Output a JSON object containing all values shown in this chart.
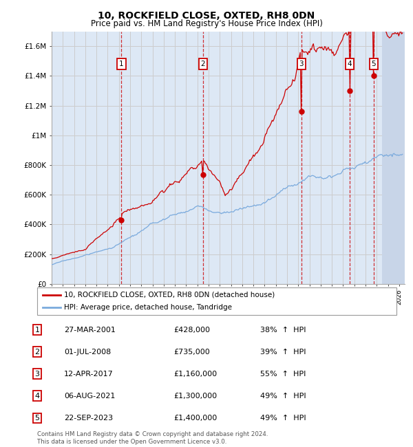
{
  "title": "10, ROCKFIELD CLOSE, OXTED, RH8 0DN",
  "subtitle": "Price paid vs. HM Land Registry's House Price Index (HPI)",
  "ylabel_ticks": [
    "£0",
    "£200K",
    "£400K",
    "£600K",
    "£800K",
    "£1M",
    "£1.2M",
    "£1.4M",
    "£1.6M"
  ],
  "ylabel_values": [
    0,
    200000,
    400000,
    600000,
    800000,
    1000000,
    1200000,
    1400000,
    1600000
  ],
  "ylim": [
    0,
    1700000
  ],
  "xlim_start": 1995.0,
  "xlim_end": 2026.5,
  "legend_line1": "10, ROCKFIELD CLOSE, OXTED, RH8 0DN (detached house)",
  "legend_line2": "HPI: Average price, detached house, Tandridge",
  "sales": [
    {
      "num": 1,
      "date_label": "27-MAR-2001",
      "date_x": 2001.23,
      "price": 428000,
      "pct": "38%",
      "dir": "↑"
    },
    {
      "num": 2,
      "date_label": "01-JUL-2008",
      "date_x": 2008.5,
      "price": 735000,
      "pct": "39%",
      "dir": "↑"
    },
    {
      "num": 3,
      "date_label": "12-APR-2017",
      "date_x": 2017.28,
      "price": 1160000,
      "pct": "55%",
      "dir": "↑"
    },
    {
      "num": 4,
      "date_label": "06-AUG-2021",
      "date_x": 2021.6,
      "price": 1300000,
      "pct": "49%",
      "dir": "↑"
    },
    {
      "num": 5,
      "date_label": "22-SEP-2023",
      "date_x": 2023.73,
      "price": 1400000,
      "pct": "49%",
      "dir": "↑"
    }
  ],
  "footer": "Contains HM Land Registry data © Crown copyright and database right 2024.\nThis data is licensed under the Open Government Licence v3.0.",
  "hpi_color": "#7aaadd",
  "price_color": "#cc0000",
  "grid_color": "#cccccc",
  "dashed_color": "#cc0000",
  "label_box_color": "#cc0000",
  "background_chart": "#dde8f5",
  "hatch_color": "#c8d5e8"
}
